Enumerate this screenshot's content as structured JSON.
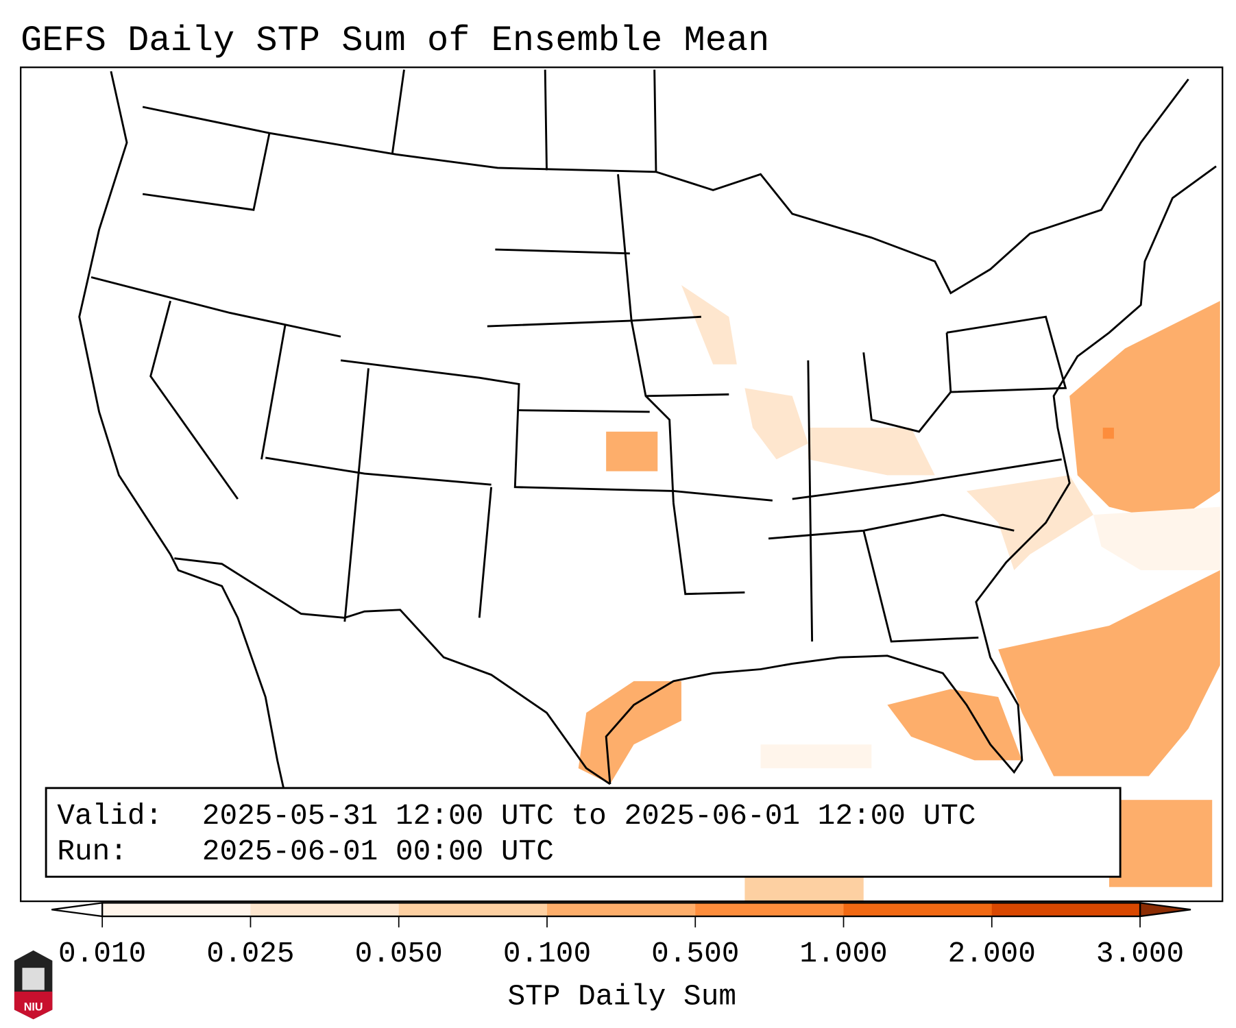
{
  "title": "GEFS Daily STP Sum of Ensemble Mean",
  "info_box": {
    "valid_label": "Valid:",
    "valid_value": "2025-05-31 12:00 UTC to 2025-06-01 12:00 UTC",
    "run_label": "Run:",
    "run_value": "2025-06-01 00:00 UTC"
  },
  "colorbar": {
    "label": "STP Daily Sum",
    "ticks": [
      "0.010",
      "0.025",
      "0.050",
      "0.100",
      "0.500",
      "1.000",
      "2.000",
      "3.000"
    ],
    "colors": [
      "#fff5eb",
      "#fee6ce",
      "#fdd0a2",
      "#fdae6b",
      "#fd8d3c",
      "#f16913",
      "#d94801"
    ],
    "under_color": "#ffffff",
    "over_color": "#8c2d04"
  },
  "logo": {
    "text": "NIU",
    "color": "#c8102e"
  }
}
